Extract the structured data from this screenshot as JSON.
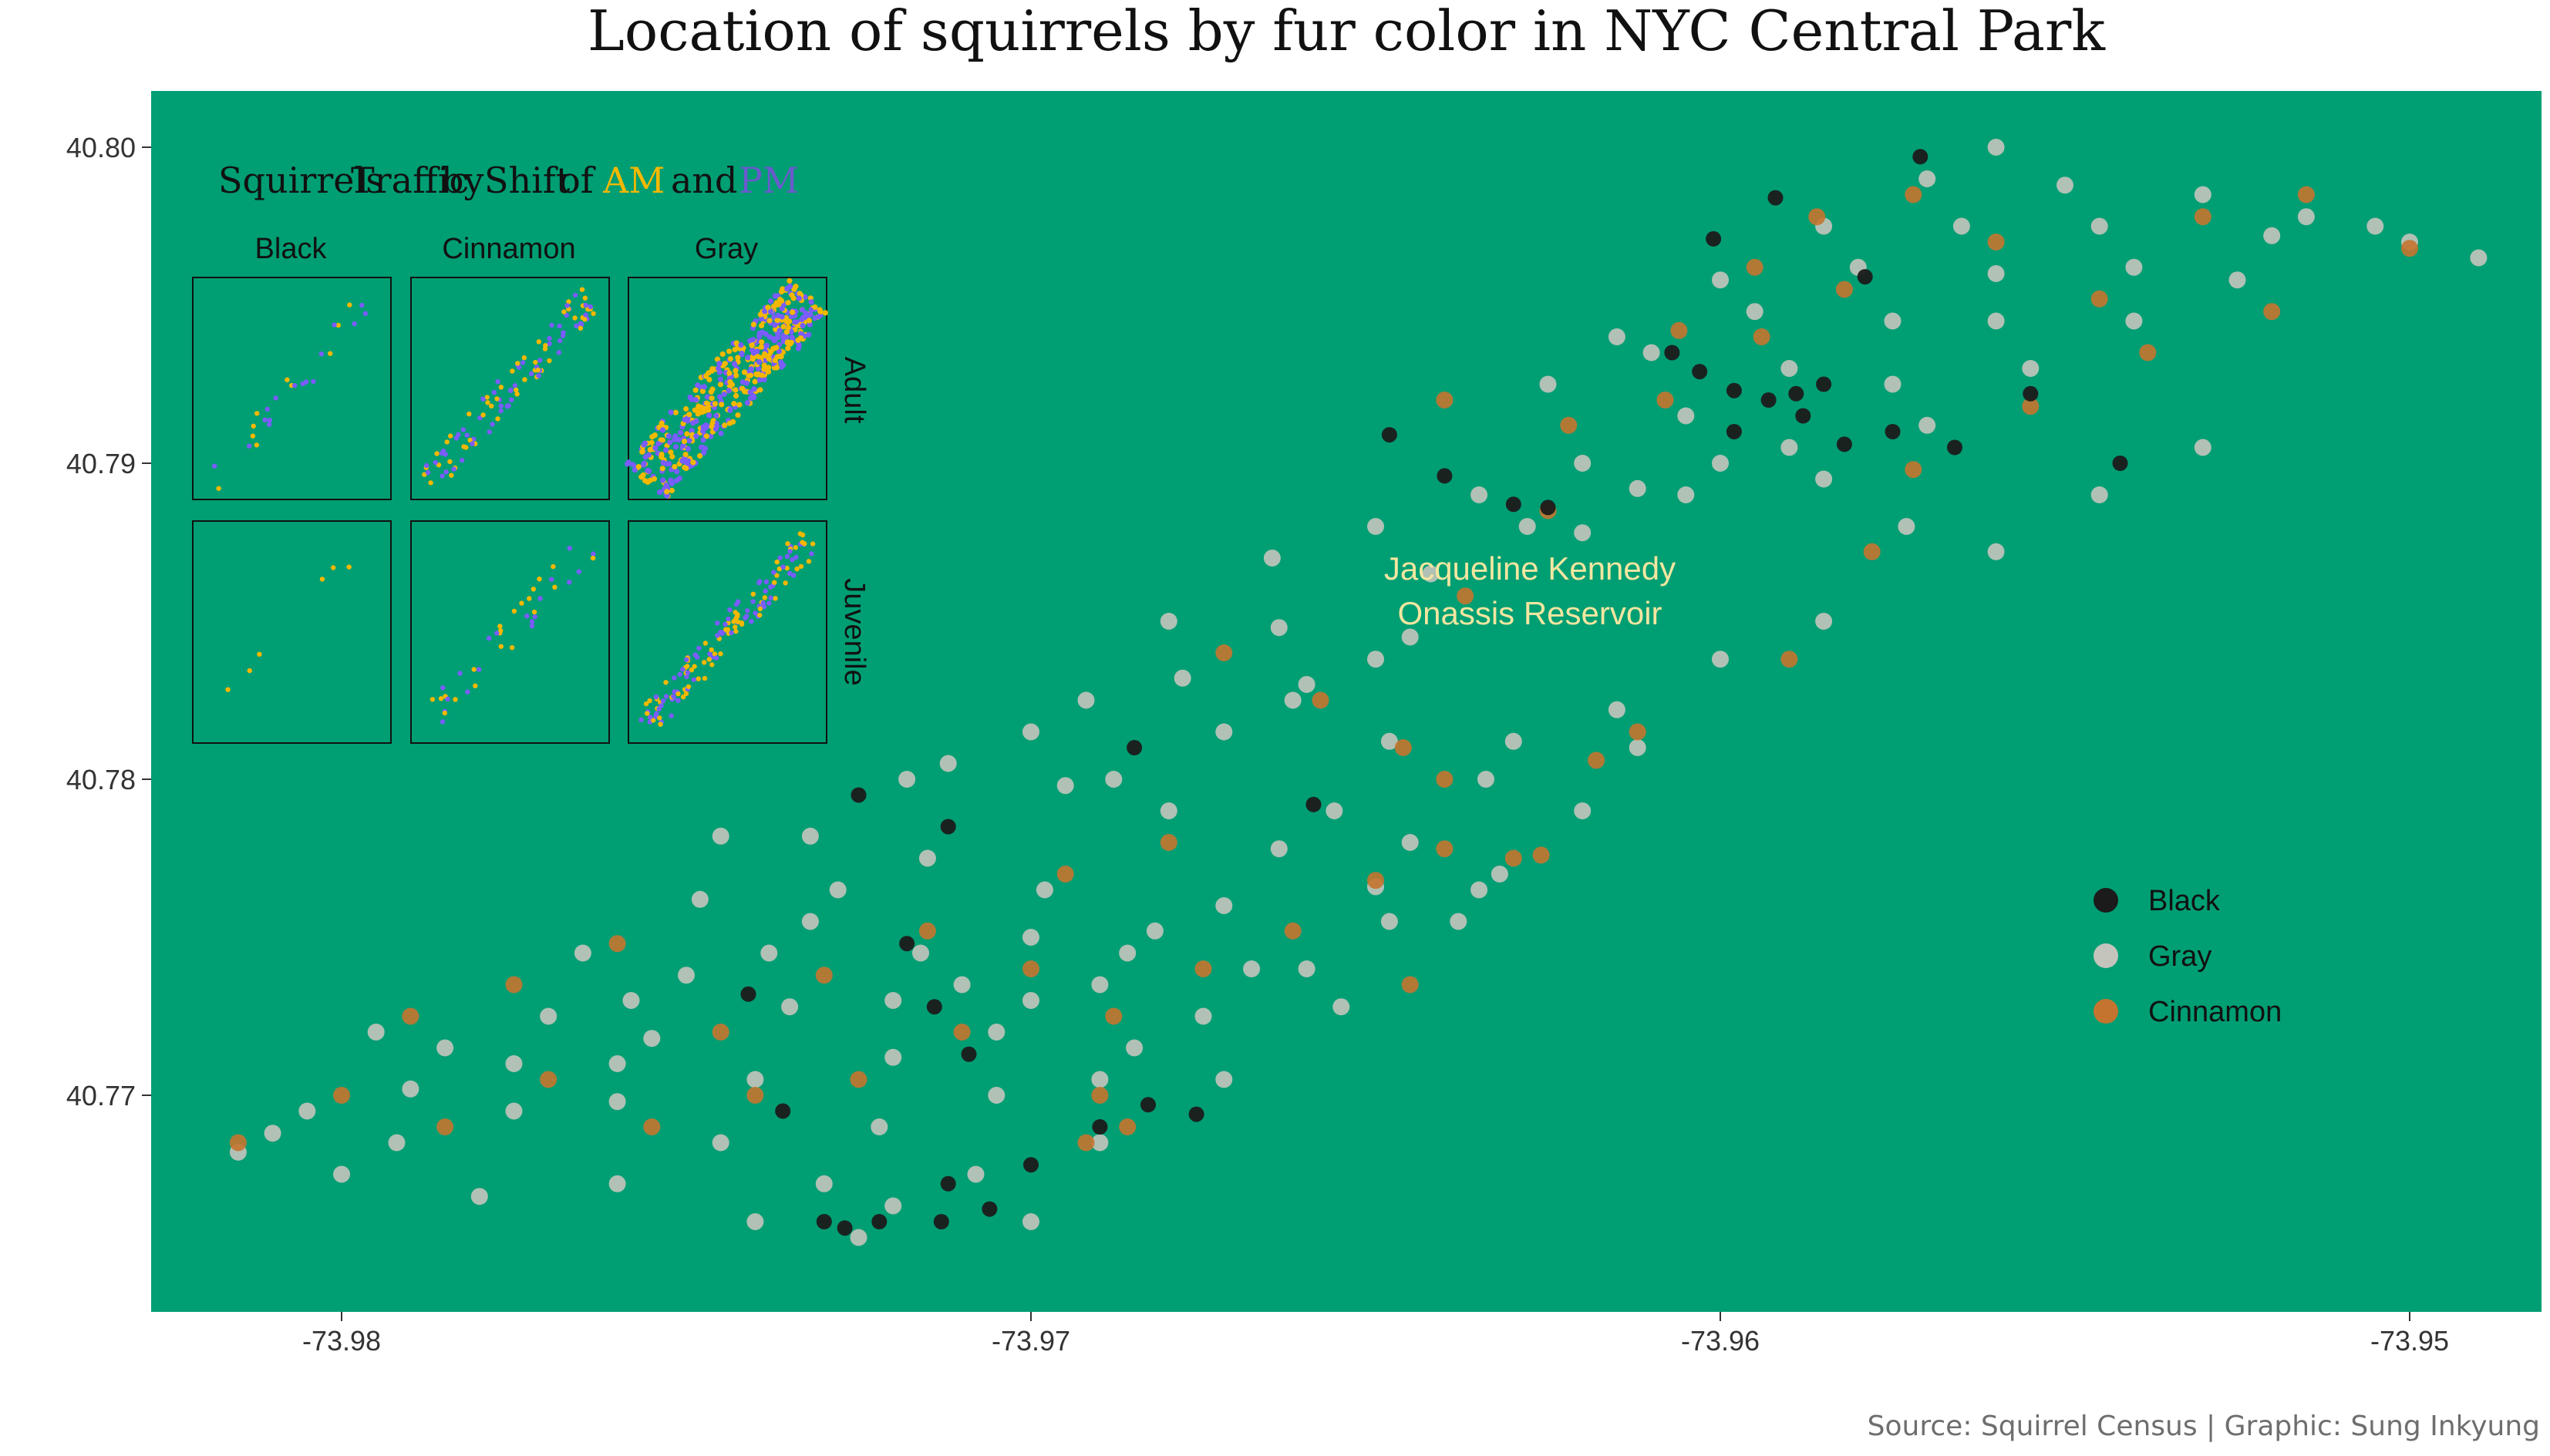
{
  "chart_data": [
    {
      "type": "scatter",
      "title": "Location of squirrels by fur color in NYC Central Park",
      "xlabel": "",
      "ylabel": "",
      "xlim": [
        -73.9827,
        -73.9483
      ],
      "ylim": [
        40.7636,
        40.8019
      ],
      "x_ticks": [
        "-73.98",
        "-73.97",
        "-73.96",
        "-73.95"
      ],
      "x_tick_values": [
        -73.98,
        -73.97,
        -73.96,
        -73.95
      ],
      "y_ticks": [
        "40.77",
        "40.78",
        "40.79",
        "40.80"
      ],
      "y_tick_values": [
        40.77,
        40.78,
        40.79,
        40.8
      ],
      "grid": false,
      "legend_position": "right",
      "annotation": {
        "text_lines": [
          "Jacqueline Kennedy",
          "Onassis Reservoir"
        ],
        "x": -73.9635,
        "y": 40.7865,
        "color": "#f3e6a0"
      },
      "panel_color": "#009e73",
      "series": [
        {
          "name": "Black",
          "color": "#1b1b1b",
          "points": [
            [
              -73.9725,
              40.7795
            ],
            [
              -73.9712,
              40.7785
            ],
            [
              -73.9718,
              40.7748
            ],
            [
              -73.9709,
              40.7713
            ],
            [
              -73.9714,
              40.7728
            ],
            [
              -73.97,
              40.7678
            ],
            [
              -73.9712,
              40.7672
            ],
            [
              -73.9736,
              40.7695
            ],
            [
              -73.9741,
              40.7732
            ],
            [
              -73.973,
              40.766
            ],
            [
              -73.9722,
              40.766
            ],
            [
              -73.9727,
              40.7658
            ],
            [
              -73.9713,
              40.766
            ],
            [
              -73.9706,
              40.7664
            ],
            [
              -73.969,
              40.769
            ],
            [
              -73.9676,
              40.7694
            ],
            [
              -73.9683,
              40.7697
            ],
            [
              -73.9685,
              40.781
            ],
            [
              -73.9659,
              40.7792
            ],
            [
              -73.9648,
              40.7909
            ],
            [
              -73.964,
              40.7896
            ],
            [
              -73.963,
              40.7887
            ],
            [
              -73.9625,
              40.7886
            ],
            [
              -73.9607,
              40.7935
            ],
            [
              -73.9603,
              40.7929
            ],
            [
              -73.9598,
              40.7923
            ],
            [
              -73.9593,
              40.792
            ],
            [
              -73.9589,
              40.7922
            ],
            [
              -73.9585,
              40.7925
            ],
            [
              -73.9588,
              40.7915
            ],
            [
              -73.9598,
              40.791
            ],
            [
              -73.9582,
              40.7906
            ],
            [
              -73.9575,
              40.791
            ],
            [
              -73.9566,
              40.7905
            ],
            [
              -73.9579,
              40.7959
            ],
            [
              -73.9571,
              40.7997
            ],
            [
              -73.9601,
              40.7971
            ],
            [
              -73.9592,
              40.7984
            ],
            [
              -73.9555,
              40.7922
            ],
            [
              -73.9542,
              40.79
            ]
          ]
        },
        {
          "name": "Gray",
          "color": "#c4c4bd",
          "points": [
            [
              -73.981,
              40.7688
            ],
            [
              -73.979,
              40.7702
            ],
            [
              -73.9775,
              40.771
            ],
            [
              -73.976,
              40.7698
            ],
            [
              -73.9745,
              40.7685
            ],
            [
              -73.973,
              40.7672
            ],
            [
              -73.9785,
              40.7715
            ],
            [
              -73.977,
              40.7725
            ],
            [
              -73.9755,
              40.7718
            ],
            [
              -73.974,
              40.7705
            ],
            [
              -73.9722,
              40.769
            ],
            [
              -73.9708,
              40.7675
            ],
            [
              -73.9765,
              40.7745
            ],
            [
              -73.975,
              40.7738
            ],
            [
              -73.9735,
              40.7728
            ],
            [
              -73.972,
              40.7712
            ],
            [
              -73.9705,
              40.77
            ],
            [
              -73.969,
              40.7685
            ],
            [
              -73.9748,
              40.7762
            ],
            [
              -73.9732,
              40.7755
            ],
            [
              -73.9716,
              40.7745
            ],
            [
              -73.97,
              40.773
            ],
            [
              -73.9685,
              40.7715
            ],
            [
              -73.9672,
              40.7705
            ],
            [
              -73.9732,
              40.7782
            ],
            [
              -73.9715,
              40.7775
            ],
            [
              -73.9698,
              40.7765
            ],
            [
              -73.9682,
              40.7752
            ],
            [
              -73.9668,
              40.774
            ],
            [
              -73.9655,
              40.7728
            ],
            [
              -73.9712,
              40.7805
            ],
            [
              -73.9695,
              40.7798
            ],
            [
              -73.968,
              40.779
            ],
            [
              -73.9664,
              40.7778
            ],
            [
              -73.965,
              40.7766
            ],
            [
              -73.9638,
              40.7755
            ],
            [
              -73.9692,
              40.7825
            ],
            [
              -73.9678,
              40.7832
            ],
            [
              -73.9662,
              40.7825
            ],
            [
              -73.9648,
              40.7812
            ],
            [
              -73.9634,
              40.78
            ],
            [
              -73.968,
              40.785
            ],
            [
              -73.9664,
              40.7848
            ],
            [
              -73.965,
              40.7838
            ],
            [
              -73.962,
              40.779
            ],
            [
              -73.9612,
              40.781
            ],
            [
              -73.9665,
              40.787
            ],
            [
              -73.965,
              40.788
            ],
            [
              -73.9635,
              40.789
            ],
            [
              -73.962,
              40.79
            ],
            [
              -73.9605,
              40.7915
            ],
            [
              -73.959,
              40.793
            ],
            [
              -73.9575,
              40.7945
            ],
            [
              -73.956,
              40.796
            ],
            [
              -73.9545,
              40.7975
            ],
            [
              -73.953,
              40.7985
            ],
            [
              -73.9515,
              40.7978
            ],
            [
              -73.95,
              40.797
            ],
            [
              -73.961,
              40.7935
            ],
            [
              -73.9595,
              40.7948
            ],
            [
              -73.958,
              40.7962
            ],
            [
              -73.9565,
              40.7975
            ],
            [
              -73.955,
              40.7988
            ],
            [
              -73.96,
              40.79
            ],
            [
              -73.9585,
              40.7895
            ],
            [
              -73.957,
              40.7912
            ],
            [
              -73.9555,
              40.793
            ],
            [
              -73.954,
              40.7945
            ],
            [
              -73.9525,
              40.7958
            ],
            [
              -73.9573,
              40.788
            ],
            [
              -73.956,
              40.7872
            ],
            [
              -73.9545,
              40.789
            ],
            [
              -73.953,
              40.7905
            ],
            [
              -73.9585,
              40.785
            ],
            [
              -73.96,
              40.7838
            ],
            [
              -73.9615,
              40.7822
            ],
            [
              -73.963,
              40.7812
            ],
            [
              -73.9642,
              40.7865
            ],
            [
              -73.9628,
              40.788
            ],
            [
              -73.9612,
              40.7892
            ],
            [
              -73.9625,
              40.7925
            ],
            [
              -73.9615,
              40.794
            ],
            [
              -73.96,
              40.7958
            ],
            [
              -73.9585,
              40.7975
            ],
            [
              -73.957,
              40.799
            ],
            [
              -73.956,
              40.8
            ],
            [
              -73.949,
              40.7965
            ],
            [
              -73.9505,
              40.7975
            ],
            [
              -73.952,
              40.7972
            ],
            [
              -73.954,
              40.7962
            ],
            [
              -73.956,
              40.7945
            ],
            [
              -73.9575,
              40.7925
            ],
            [
              -73.959,
              40.7905
            ],
            [
              -73.9605,
              40.789
            ],
            [
              -73.962,
              40.7878
            ],
            [
              -73.98,
              40.7675
            ],
            [
              -73.978,
              40.7668
            ],
            [
              -73.976,
              40.7672
            ],
            [
              -73.974,
              40.766
            ],
            [
              -73.972,
              40.7665
            ],
            [
              -73.9725,
              40.7655
            ],
            [
              -73.97,
              40.766
            ],
            [
              -73.969,
              40.7705
            ],
            [
              -73.971,
              40.7735
            ],
            [
              -73.9728,
              40.7765
            ],
            [
              -73.9745,
              40.7782
            ],
            [
              -73.9718,
              40.78
            ],
            [
              -73.97,
              40.7815
            ],
            [
              -73.9688,
              40.78
            ],
            [
              -73.9672,
              40.7815
            ],
            [
              -73.966,
              40.783
            ],
            [
              -73.9645,
              40.7845
            ],
            [
              -73.9632,
              40.777
            ],
            [
              -73.9645,
              40.778
            ],
            [
              -73.9656,
              40.779
            ],
            [
              -73.9672,
              40.776
            ],
            [
              -73.9686,
              40.7745
            ],
            [
              -73.97,
              40.775
            ],
            [
              -73.976,
              40.771
            ],
            [
              -73.9775,
              40.7695
            ],
            [
              -73.9792,
              40.7685
            ],
            [
              -73.9805,
              40.7695
            ],
            [
              -73.9815,
              40.7682
            ],
            [
              -73.9795,
              40.772
            ],
            [
              -73.9758,
              40.773
            ],
            [
              -73.9738,
              40.7745
            ],
            [
              -73.972,
              40.773
            ],
            [
              -73.9705,
              40.772
            ],
            [
              -73.969,
              40.7735
            ],
            [
              -73.9675,
              40.7725
            ],
            [
              -73.966,
              40.774
            ],
            [
              -73.9648,
              40.7755
            ],
            [
              -73.9635,
              40.7765
            ]
          ]
        },
        {
          "name": "Cinnamon",
          "color": "#c5742f",
          "points": [
            [
              -73.9815,
              40.7685
            ],
            [
              -73.98,
              40.77
            ],
            [
              -73.9785,
              40.769
            ],
            [
              -73.977,
              40.7705
            ],
            [
              -73.9755,
              40.769
            ],
            [
              -73.974,
              40.77
            ],
            [
              -73.979,
              40.7725
            ],
            [
              -73.9775,
              40.7735
            ],
            [
              -73.976,
              40.7748
            ],
            [
              -73.9745,
              40.772
            ],
            [
              -73.973,
              40.7738
            ],
            [
              -73.9715,
              40.7752
            ],
            [
              -73.97,
              40.774
            ],
            [
              -73.9688,
              40.7725
            ],
            [
              -73.9675,
              40.774
            ],
            [
              -73.9662,
              40.7752
            ],
            [
              -73.965,
              40.7768
            ],
            [
              -73.964,
              40.7778
            ],
            [
              -73.963,
              40.7775
            ],
            [
              -73.9626,
              40.7776
            ],
            [
              -73.9646,
              40.781
            ],
            [
              -73.9658,
              40.7825
            ],
            [
              -73.9672,
              40.784
            ],
            [
              -73.964,
              40.78
            ],
            [
              -73.9645,
              40.7735
            ],
            [
              -73.968,
              40.778
            ],
            [
              -73.9695,
              40.777
            ],
            [
              -73.971,
              40.772
            ],
            [
              -73.9725,
              40.7705
            ],
            [
              -73.9692,
              40.7685
            ],
            [
              -73.969,
              40.77
            ],
            [
              -73.9686,
              40.769
            ],
            [
              -73.9625,
              40.7885
            ],
            [
              -73.9637,
              40.7858
            ],
            [
              -73.9622,
              40.7912
            ],
            [
              -73.9606,
              40.7942
            ],
            [
              -73.9595,
              40.7962
            ],
            [
              -73.9586,
              40.7978
            ],
            [
              -73.9572,
              40.7985
            ],
            [
              -73.956,
              40.797
            ],
            [
              -73.9545,
              40.7952
            ],
            [
              -73.953,
              40.7978
            ],
            [
              -73.9515,
              40.7985
            ],
            [
              -73.95,
              40.7968
            ],
            [
              -73.952,
              40.7948
            ],
            [
              -73.9538,
              40.7935
            ],
            [
              -73.9555,
              40.7918
            ],
            [
              -73.9572,
              40.7898
            ],
            [
              -73.9594,
              40.794
            ],
            [
              -73.9582,
              40.7955
            ],
            [
              -73.9608,
              40.792
            ],
            [
              -73.964,
              40.792
            ],
            [
              -73.9578,
              40.7872
            ],
            [
              -73.959,
              40.7838
            ],
            [
              -73.9612,
              40.7815
            ],
            [
              -73.9618,
              40.7806
            ]
          ]
        }
      ]
    },
    {
      "type": "scatter",
      "title_parts": [
        "Squirrels",
        "Traffic",
        "by",
        "Shift",
        "of",
        "AM",
        "and",
        "PM"
      ],
      "title_colors": {
        "AM": "#f5b800",
        "PM": "#6a5acd"
      },
      "columns": [
        "Black",
        "Cinnamon",
        "Gray"
      ],
      "rows": [
        "Adult",
        "Juvenile"
      ],
      "series_colors": {
        "AM": "#f5b800",
        "PM": "#7a5cff"
      },
      "note": "small multiples of squirrel location (facets by fur color and age), points colored by shift"
    }
  ],
  "legend": {
    "items": [
      {
        "label": "Black",
        "color": "#1b1b1b"
      },
      {
        "label": "Gray",
        "color": "#c4c4bd"
      },
      {
        "label": "Cinnamon",
        "color": "#c5742f"
      }
    ]
  },
  "caption": "Source: Squirrel Census | Graphic: Sung Inkyung"
}
